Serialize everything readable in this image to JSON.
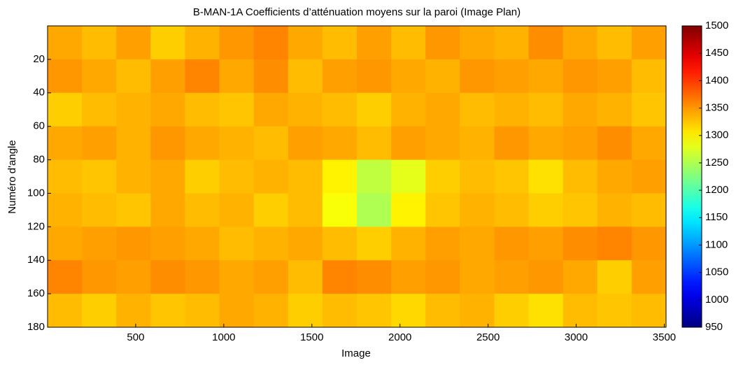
{
  "chart_data": {
    "type": "heatmap",
    "title": "B-MAN-1A  Coefficients d’atténuation moyens sur la paroi (Image Plan)",
    "xlabel": "Image",
    "ylabel": "Numéro d'angle",
    "xlim": [
      0,
      3510
    ],
    "xticks": [
      500,
      1000,
      1500,
      2000,
      2500,
      3000,
      3500
    ],
    "ylim": [
      0,
      180
    ],
    "yticks": [
      20,
      40,
      60,
      80,
      100,
      120,
      140,
      160,
      180
    ],
    "y_reversed": true,
    "colormap": "jet",
    "clim": [
      950,
      1500
    ],
    "cticks": [
      950,
      1000,
      1050,
      1100,
      1150,
      1200,
      1250,
      1300,
      1350,
      1400,
      1450,
      1500
    ],
    "z": [
      [
        1340,
        1330,
        1345,
        1320,
        1335,
        1350,
        1360,
        1340,
        1330,
        1345,
        1330,
        1350,
        1340,
        1335,
        1355,
        1340,
        1330,
        1345
      ],
      [
        1350,
        1340,
        1330,
        1345,
        1360,
        1340,
        1355,
        1330,
        1345,
        1350,
        1340,
        1335,
        1350,
        1345,
        1340,
        1350,
        1345,
        1330
      ],
      [
        1320,
        1330,
        1335,
        1340,
        1330,
        1325,
        1340,
        1335,
        1330,
        1320,
        1335,
        1340,
        1330,
        1335,
        1330,
        1340,
        1335,
        1325
      ],
      [
        1340,
        1345,
        1335,
        1350,
        1340,
        1335,
        1330,
        1345,
        1340,
        1330,
        1345,
        1340,
        1335,
        1350,
        1340,
        1345,
        1355,
        1340
      ],
      [
        1330,
        1325,
        1335,
        1340,
        1320,
        1330,
        1335,
        1330,
        1300,
        1260,
        1280,
        1320,
        1330,
        1325,
        1310,
        1330,
        1340,
        1345
      ],
      [
        1335,
        1330,
        1325,
        1340,
        1330,
        1335,
        1320,
        1330,
        1290,
        1250,
        1300,
        1325,
        1335,
        1330,
        1320,
        1325,
        1335,
        1330
      ],
      [
        1340,
        1345,
        1350,
        1345,
        1340,
        1330,
        1335,
        1340,
        1330,
        1320,
        1335,
        1345,
        1340,
        1350,
        1345,
        1355,
        1360,
        1350
      ],
      [
        1360,
        1350,
        1345,
        1355,
        1350,
        1340,
        1345,
        1330,
        1360,
        1355,
        1345,
        1350,
        1340,
        1345,
        1350,
        1340,
        1320,
        1345
      ],
      [
        1330,
        1320,
        1335,
        1325,
        1330,
        1340,
        1335,
        1320,
        1330,
        1325,
        1315,
        1330,
        1335,
        1320,
        1310,
        1330,
        1325,
        1330
      ]
    ]
  }
}
